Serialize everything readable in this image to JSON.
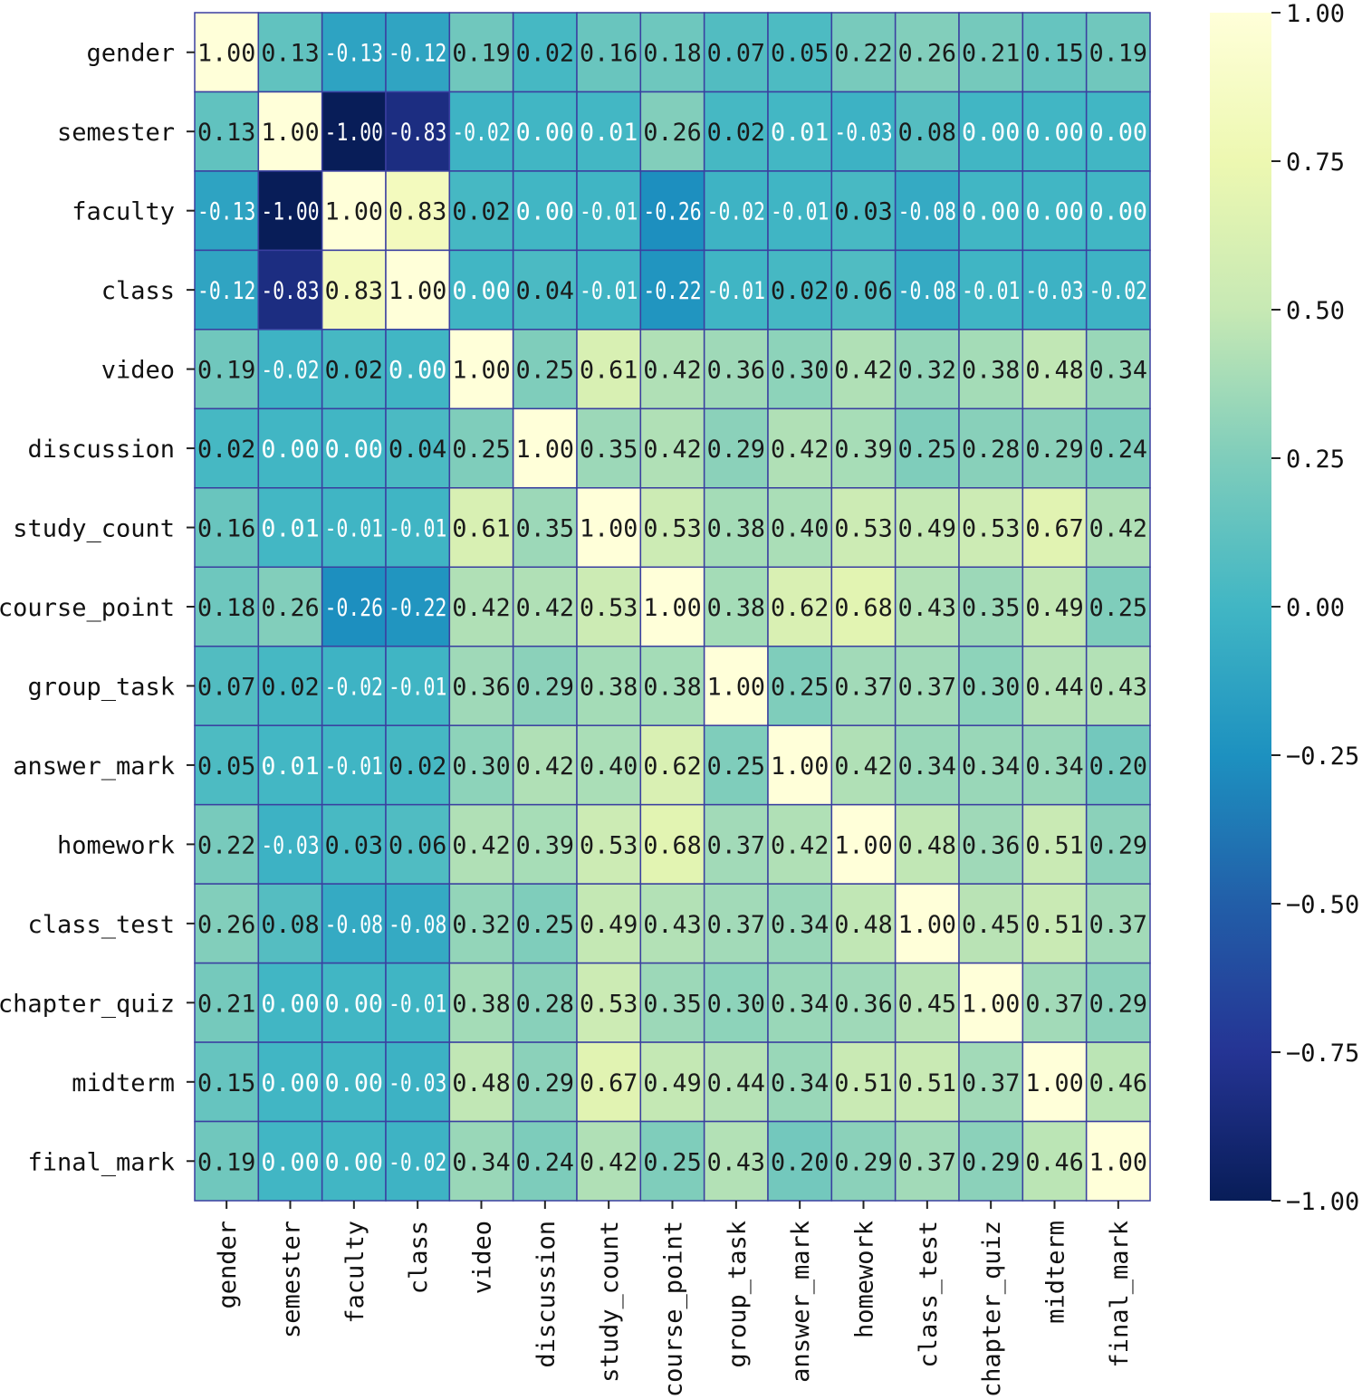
{
  "chart_data": {
    "type": "heatmap",
    "title": "",
    "xlabel": "",
    "ylabel": "",
    "colormap": "YlGnBu",
    "vmin": -1.0,
    "vmax": 1.0,
    "annotation_format": "0.00",
    "labels": [
      "gender",
      "semester",
      "faculty",
      "class",
      "video",
      "discussion",
      "study_count",
      "course_point",
      "group_task",
      "answer_mark",
      "homework",
      "class_test",
      "chapter_quiz",
      "midterm",
      "final_mark"
    ],
    "matrix": [
      [
        1.0,
        0.13,
        -0.13,
        -0.12,
        0.19,
        0.02,
        0.16,
        0.18,
        0.07,
        0.05,
        0.22,
        0.26,
        0.21,
        0.15,
        0.19
      ],
      [
        0.13,
        1.0,
        -1.0,
        -0.83,
        -0.02,
        0.0,
        0.01,
        0.26,
        0.02,
        0.01,
        -0.03,
        0.08,
        -0.0,
        0.0,
        -0.0
      ],
      [
        -0.13,
        -1.0,
        1.0,
        0.83,
        0.02,
        -0.0,
        -0.01,
        -0.26,
        -0.02,
        -0.01,
        0.03,
        -0.08,
        0.0,
        -0.0,
        0.0
      ],
      [
        -0.12,
        -0.83,
        0.83,
        1.0,
        0.0,
        0.04,
        -0.01,
        -0.22,
        -0.01,
        0.02,
        0.06,
        -0.08,
        -0.01,
        -0.03,
        -0.02
      ],
      [
        0.19,
        -0.02,
        0.02,
        0.0,
        1.0,
        0.25,
        0.61,
        0.42,
        0.36,
        0.3,
        0.42,
        0.32,
        0.38,
        0.48,
        0.34
      ],
      [
        0.02,
        0.0,
        -0.0,
        0.04,
        0.25,
        1.0,
        0.35,
        0.42,
        0.29,
        0.42,
        0.39,
        0.25,
        0.28,
        0.29,
        0.24
      ],
      [
        0.16,
        0.01,
        -0.01,
        -0.01,
        0.61,
        0.35,
        1.0,
        0.53,
        0.38,
        0.4,
        0.53,
        0.49,
        0.53,
        0.67,
        0.42
      ],
      [
        0.18,
        0.26,
        -0.26,
        -0.22,
        0.42,
        0.42,
        0.53,
        1.0,
        0.38,
        0.62,
        0.68,
        0.43,
        0.35,
        0.49,
        0.25
      ],
      [
        0.07,
        0.02,
        -0.02,
        -0.01,
        0.36,
        0.29,
        0.38,
        0.38,
        1.0,
        0.25,
        0.37,
        0.37,
        0.3,
        0.44,
        0.43
      ],
      [
        0.05,
        0.01,
        -0.01,
        0.02,
        0.3,
        0.42,
        0.4,
        0.62,
        0.25,
        1.0,
        0.42,
        0.34,
        0.34,
        0.34,
        0.2
      ],
      [
        0.22,
        -0.03,
        0.03,
        0.06,
        0.42,
        0.39,
        0.53,
        0.68,
        0.37,
        0.42,
        1.0,
        0.48,
        0.36,
        0.51,
        0.29
      ],
      [
        0.26,
        0.08,
        -0.08,
        -0.08,
        0.32,
        0.25,
        0.49,
        0.43,
        0.37,
        0.34,
        0.48,
        1.0,
        0.45,
        0.51,
        0.37
      ],
      [
        0.21,
        -0.0,
        0.0,
        -0.01,
        0.38,
        0.28,
        0.53,
        0.35,
        0.3,
        0.34,
        0.36,
        0.45,
        1.0,
        0.37,
        0.29
      ],
      [
        0.15,
        0.0,
        -0.0,
        -0.03,
        0.48,
        0.29,
        0.67,
        0.49,
        0.44,
        0.34,
        0.51,
        0.51,
        0.37,
        1.0,
        0.46
      ],
      [
        0.19,
        -0.0,
        0.0,
        -0.02,
        0.34,
        0.24,
        0.42,
        0.25,
        0.43,
        0.2,
        0.29,
        0.37,
        0.29,
        0.46,
        1.0
      ]
    ],
    "colorbar_ticks": [
      1.0,
      0.75,
      0.5,
      0.25,
      0.0,
      -0.25,
      -0.5,
      -0.75,
      -1.0
    ],
    "colorbar_tick_labels": [
      "1.00",
      "0.75",
      "0.50",
      "0.25",
      "0.00",
      "−0.25",
      "−0.50",
      "−0.75",
      "−1.00"
    ],
    "colorbar_stops": [
      "#ffffd9",
      "#edf8b1",
      "#c7e9b4",
      "#7fcdbb",
      "#41b6c4",
      "#1d91c0",
      "#225ea8",
      "#253494",
      "#081d58"
    ],
    "grid_line_color": "#3a3fa0"
  }
}
